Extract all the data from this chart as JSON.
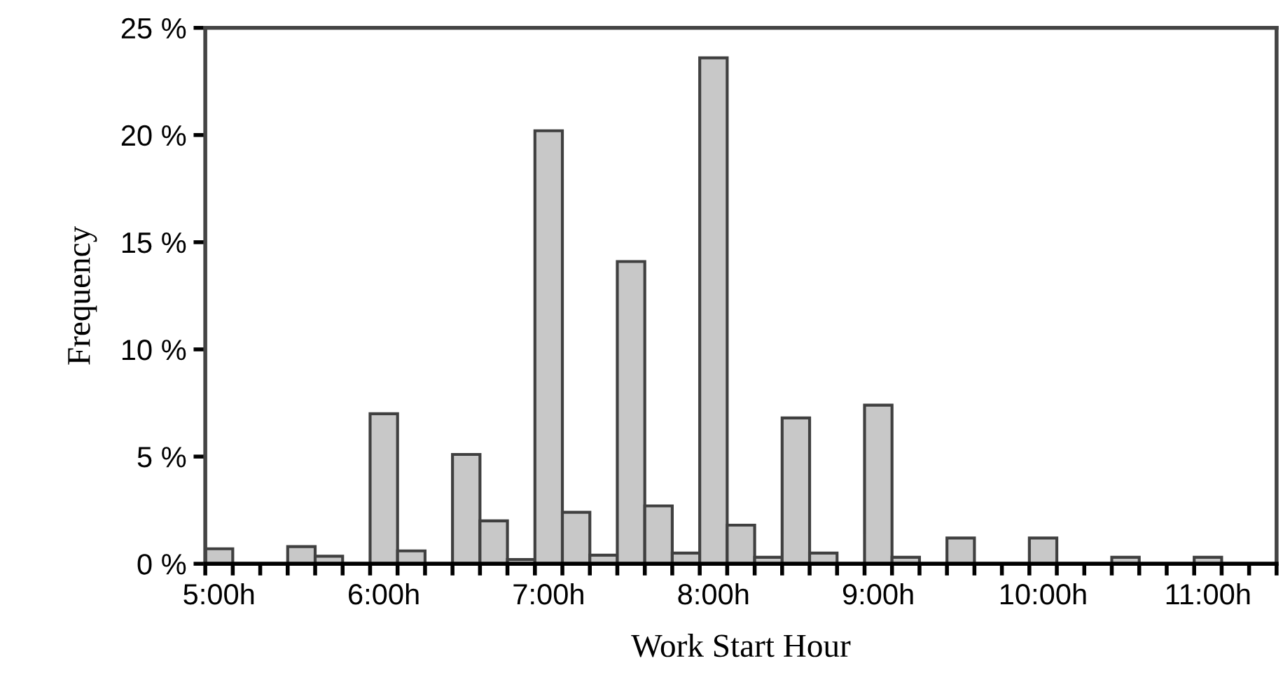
{
  "chart_data": {
    "type": "bar",
    "xlabel": "Work Start Hour",
    "ylabel": "Frequency",
    "color": "#c8c8c8",
    "categories": [
      "5:00h",
      null,
      null,
      null,
      null,
      null,
      "6:00h",
      null,
      null,
      null,
      null,
      null,
      "7:00h",
      null,
      null,
      null,
      null,
      null,
      "8:00h",
      null,
      null,
      null,
      null,
      null,
      "9:00h",
      null,
      null,
      null,
      null,
      null,
      "10:00h",
      null,
      null,
      null,
      null,
      null,
      "11:00h",
      null,
      null
    ],
    "values": [
      0.7,
      0,
      0,
      0.8,
      0.35,
      0,
      7.0,
      0.6,
      0,
      5.1,
      2.0,
      0.2,
      20.2,
      2.4,
      0.4,
      14.1,
      2.7,
      0.5,
      23.6,
      1.8,
      0.3,
      6.8,
      0.5,
      0,
      7.4,
      0.3,
      0,
      1.2,
      0,
      0,
      1.2,
      0,
      0,
      0.3,
      0,
      0,
      0.3,
      0,
      0
    ],
    "ylim": [
      0,
      25
    ],
    "yticks": [
      {
        "value": 0,
        "label": "0 %"
      },
      {
        "value": 5,
        "label": "5 %"
      },
      {
        "value": 10,
        "label": "10 %"
      },
      {
        "value": 15,
        "label": "15 %"
      },
      {
        "value": 20,
        "label": "20 %"
      },
      {
        "value": 25,
        "label": "25 %"
      }
    ]
  }
}
